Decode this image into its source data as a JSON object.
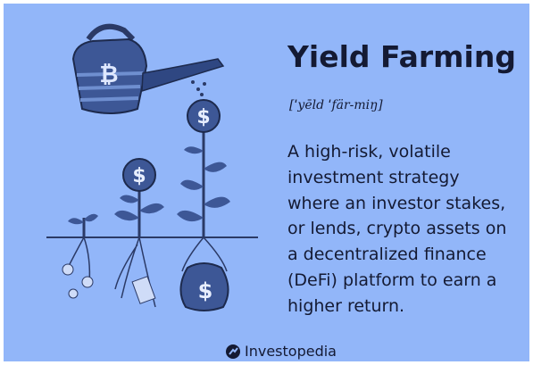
{
  "title": "Yield Farming",
  "pronunciation": "[ˈyēld ˈfär-miŋ]",
  "description_lines": [
    "A high-risk, volatile",
    "investment strategy",
    "where an investor stakes,",
    "or lends, crypto assets on",
    "a decentralized finance",
    "(DeFi) platform to earn a",
    "higher return."
  ],
  "brand": "Investopedia"
}
